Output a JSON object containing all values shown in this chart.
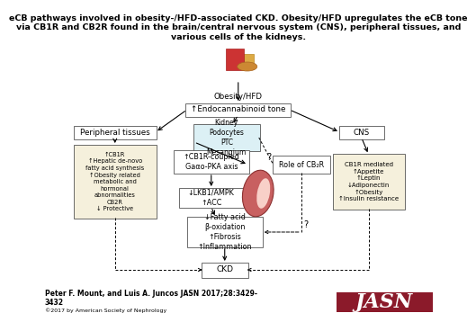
{
  "title_line1": "eCB pathways involved in obesity-/HFD-associated CKD. Obesity/HFD upregulates the eCB tone",
  "title_line2": "via CB1R and CB2R found in the brain/central nervous system (CNS), peripheral tissues, and",
  "title_line3": "various cells of the kidneys.",
  "title_fontsize": 6.8,
  "background_color": "#ffffff",
  "citation_bold": "Peter F. Mount, and Luis A. Juncos JASN 2017;28:3429-\n3432",
  "copyright": "©2017 by American Society of Nephrology",
  "jasn_bg": "#8B1A2A",
  "jasn_text": "JASN",
  "obesity_label": "Obesity/HFD",
  "endo_text": "↑Endocannabinoid tone",
  "peripheral_text": "Peripheral tissues",
  "kidney_text": "Kidney\nPodocytes\nPTC\nMesangium",
  "cns_text": "CNS",
  "cb1r_periph_text": "↑CB1R\n↑Hepatic de-novo\nfatty acid synthesis\n↑Obesity related\nmetabolic and\nhormonal\nabnormalities\nCB2R\n↓ Protective",
  "cb1r_coupled_text": "↑CB1R-coupled\nGaαo-PKA axis",
  "cb2r_role_text": "Role of CB₂R",
  "lkb1_text": "↓LKB1/AMPK\n↑ACC",
  "fatty_text": "↓Fatty acid\nβ-oxidation\n↑Fibrosis\n↑Inflammation",
  "ckd_text": "CKD",
  "cb1r_cns_text": "CB1R mediated\n↑Appetite\n↑Leptin\n↓Adiponectin\n↑Obesity\n↑Insulin resistance",
  "box_facecolor_tan": "#F5F0DC",
  "box_facecolor_blue": "#DCF0F5",
  "box_facecolor_white": "#ffffff",
  "box_edgecolor": "#555555",
  "kidney_color": "#C86060",
  "kidney_hilight": "#E89090"
}
